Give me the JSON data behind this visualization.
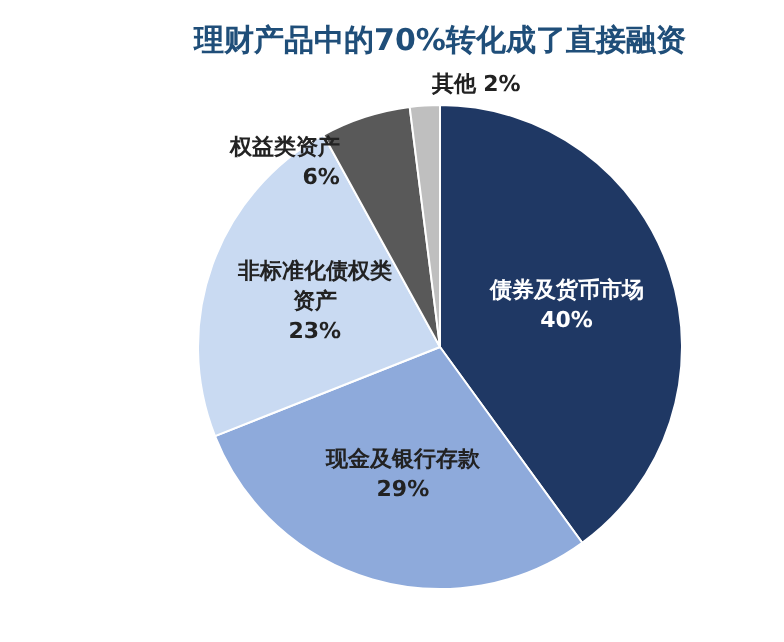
{
  "chart_data": {
    "type": "pie",
    "title": "理财产品中的70%转化成了直接融资",
    "categories": [
      "债券及货币市场",
      "现金及银行存款",
      "非标准化债权类资产",
      "权益类资产",
      "其他"
    ],
    "values": [
      40,
      29,
      23,
      6,
      2
    ],
    "colors": [
      "#1f3864",
      "#8eaadb",
      "#c9daf2",
      "#595959",
      "#bfbfbf"
    ],
    "value_labels": [
      "40%",
      "29%",
      "23%",
      "6%",
      "2%"
    ],
    "legend": false
  }
}
